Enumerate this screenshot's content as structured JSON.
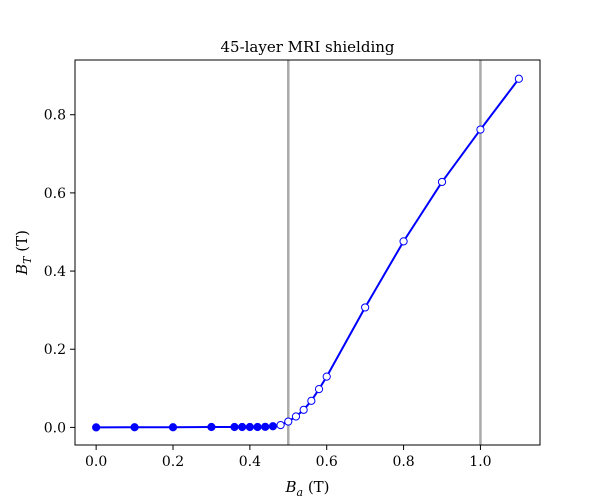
{
  "chart_data": {
    "type": "line",
    "title": "45-layer MRI shielding",
    "xlabel": {
      "base": "B",
      "sub": "a",
      "rest": " (T)"
    },
    "ylabel": {
      "base": "B",
      "sub": "T",
      "rest": " (T)"
    },
    "xlim": [
      -0.055,
      1.155
    ],
    "ylim": [
      -0.045,
      0.94
    ],
    "xticks": [
      0.0,
      0.2,
      0.4,
      0.6,
      0.8,
      1.0
    ],
    "xtick_labels": [
      "0.0",
      "0.2",
      "0.4",
      "0.6",
      "0.8",
      "1.0"
    ],
    "yticks": [
      0.0,
      0.2,
      0.4,
      0.6,
      0.8
    ],
    "ytick_labels": [
      "0.0",
      "0.2",
      "0.4",
      "0.6",
      "0.8"
    ],
    "grid": false,
    "vlines": [
      0.5,
      1.0
    ],
    "colors": {
      "series": "#0000ff",
      "vline": "#aaaaaa",
      "hollow_fill": "#ffffff"
    },
    "series": [
      {
        "x": [
          0.0,
          0.1,
          0.2,
          0.3,
          0.36,
          0.38,
          0.4,
          0.42,
          0.44,
          0.46,
          0.48,
          0.5,
          0.52,
          0.54,
          0.56,
          0.58,
          0.6,
          0.7,
          0.8,
          0.9,
          1.0,
          1.1
        ],
        "y": [
          0.0,
          0.0005,
          0.0005,
          0.001,
          0.001,
          0.001,
          0.001,
          0.001,
          0.0015,
          0.003,
          0.006,
          0.015,
          0.028,
          0.045,
          0.068,
          0.098,
          0.13,
          0.307,
          0.476,
          0.628,
          0.762,
          0.892
        ],
        "marker_fill": [
          "filled",
          "filled",
          "filled",
          "filled",
          "filled",
          "filled",
          "filled",
          "filled",
          "filled",
          "filled",
          "hollow",
          "hollow",
          "hollow",
          "hollow",
          "hollow",
          "hollow",
          "hollow",
          "hollow",
          "hollow",
          "hollow",
          "hollow",
          "hollow"
        ]
      }
    ]
  }
}
